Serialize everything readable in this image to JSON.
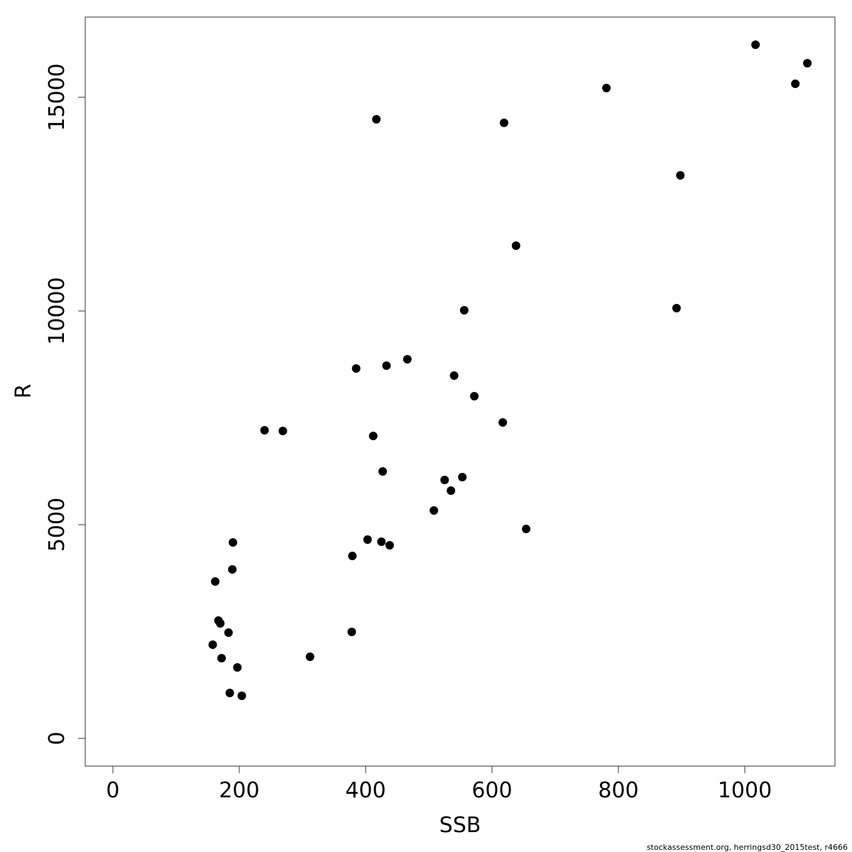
{
  "chart_data": {
    "type": "scatter",
    "x_label": "SSB",
    "y_label": "R",
    "footer": "stockassessment.org, herringsd30_2015test, r4666",
    "color": "#000000",
    "x": [
      1017,
      1099,
      1080,
      781,
      417,
      619,
      898,
      638,
      556,
      892,
      466,
      385,
      433,
      540,
      572,
      617,
      240,
      269,
      412,
      427,
      525,
      553,
      535,
      508,
      654,
      403,
      425,
      438,
      190,
      379,
      189,
      162,
      167,
      170,
      183,
      378,
      158,
      312,
      172,
      197,
      185,
      204
    ],
    "values": [
      16229,
      15797,
      15316,
      15216,
      14485,
      14402,
      13173,
      11528,
      10017,
      10066,
      8870,
      8654,
      8721,
      8488,
      8007,
      7392,
      7209,
      7193,
      7076,
      6246,
      6047,
      6113,
      5797,
      5332,
      4900,
      4651,
      4601,
      4518,
      4585,
      4269,
      3953,
      3671,
      2757,
      2691,
      2475,
      2492,
      2193,
      1910,
      1877,
      1661,
      1063,
      997
    ],
    "xlim": [
      -43.8,
      1142.7
    ],
    "ylim": [
      -648,
      16877
    ],
    "xticks": [
      0,
      200,
      400,
      600,
      800,
      1000
    ],
    "yticks": [
      0,
      5000,
      10000,
      15000
    ]
  }
}
